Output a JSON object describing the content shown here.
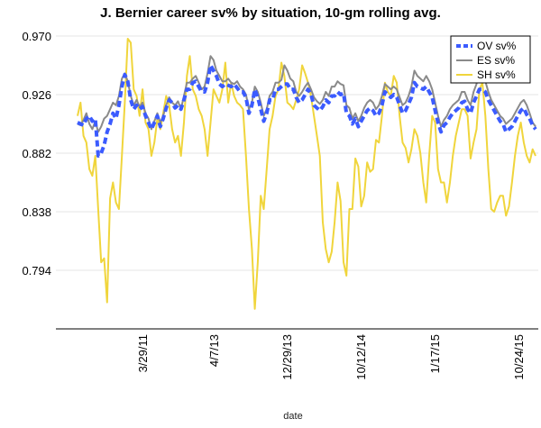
{
  "chart_data": {
    "type": "line",
    "title": "J. Bernier career sv% by situation, 10-gm rolling avg.",
    "xlabel": "date",
    "ylabel": "",
    "x_ticks": [
      "3/29/11",
      "4/7/13",
      "12/29/13",
      "10/12/14",
      "1/17/15",
      "10/24/15"
    ],
    "y_ticks": [
      "0.970",
      "0.926",
      "0.882",
      "0.838",
      "0.794"
    ],
    "ylim": [
      0.75,
      0.97
    ],
    "legend_position": "top-right",
    "series": [
      {
        "name": "OV sv%",
        "color": "#3b5bff",
        "style": "dashed",
        "values": [
          0.905,
          0.904,
          0.903,
          0.908,
          0.91,
          0.906,
          0.908,
          0.88,
          0.882,
          0.888,
          0.898,
          0.904,
          0.912,
          0.908,
          0.918,
          0.932,
          0.941,
          0.936,
          0.922,
          0.915,
          0.918,
          0.915,
          0.917,
          0.91,
          0.905,
          0.9,
          0.905,
          0.91,
          0.902,
          0.908,
          0.916,
          0.922,
          0.92,
          0.916,
          0.918,
          0.915,
          0.922,
          0.93,
          0.93,
          0.935,
          0.936,
          0.932,
          0.928,
          0.928,
          0.935,
          0.948,
          0.944,
          0.94,
          0.934,
          0.932,
          0.934,
          0.933,
          0.932,
          0.934,
          0.931,
          0.928,
          0.928,
          0.924,
          0.912,
          0.918,
          0.93,
          0.924,
          0.915,
          0.906,
          0.912,
          0.922,
          0.922,
          0.93,
          0.93,
          0.932,
          0.934,
          0.934,
          0.93,
          0.93,
          0.924,
          0.92,
          0.922,
          0.926,
          0.93,
          0.926,
          0.918,
          0.916,
          0.914,
          0.917,
          0.922,
          0.92,
          0.925,
          0.925,
          0.928,
          0.926,
          0.927,
          0.912,
          0.91,
          0.904,
          0.908,
          0.902,
          0.906,
          0.91,
          0.914,
          0.916,
          0.914,
          0.91,
          0.912,
          0.918,
          0.928,
          0.926,
          0.924,
          0.926,
          0.924,
          0.918,
          0.912,
          0.914,
          0.919,
          0.924,
          0.935,
          0.932,
          0.931,
          0.93,
          0.932,
          0.928,
          0.924,
          0.914,
          0.905,
          0.898,
          0.903,
          0.905,
          0.909,
          0.912,
          0.914,
          0.916,
          0.92,
          0.921,
          0.915,
          0.912,
          0.92,
          0.925,
          0.93,
          0.93,
          0.928,
          0.922,
          0.918,
          0.914,
          0.91,
          0.906,
          0.904,
          0.898,
          0.9,
          0.902,
          0.906,
          0.91,
          0.914,
          0.916,
          0.911,
          0.908,
          0.903,
          0.9
        ]
      },
      {
        "name": "ES sv%",
        "color": "#8a8a8a",
        "style": "solid",
        "values": [
          0.904,
          0.903,
          0.907,
          0.912,
          0.904,
          0.9,
          0.906,
          0.898,
          0.902,
          0.908,
          0.91,
          0.915,
          0.92,
          0.918,
          0.925,
          0.938,
          0.942,
          0.936,
          0.925,
          0.918,
          0.922,
          0.917,
          0.92,
          0.912,
          0.908,
          0.9,
          0.906,
          0.912,
          0.905,
          0.91,
          0.918,
          0.924,
          0.92,
          0.918,
          0.921,
          0.915,
          0.925,
          0.935,
          0.935,
          0.938,
          0.94,
          0.935,
          0.93,
          0.932,
          0.942,
          0.955,
          0.952,
          0.944,
          0.94,
          0.936,
          0.936,
          0.938,
          0.935,
          0.934,
          0.936,
          0.932,
          0.93,
          0.926,
          0.915,
          0.92,
          0.932,
          0.928,
          0.92,
          0.91,
          0.915,
          0.925,
          0.928,
          0.935,
          0.935,
          0.937,
          0.948,
          0.944,
          0.938,
          0.936,
          0.928,
          0.925,
          0.928,
          0.932,
          0.935,
          0.93,
          0.924,
          0.921,
          0.919,
          0.922,
          0.928,
          0.925,
          0.932,
          0.932,
          0.936,
          0.934,
          0.933,
          0.918,
          0.916,
          0.908,
          0.912,
          0.906,
          0.91,
          0.916,
          0.92,
          0.922,
          0.92,
          0.915,
          0.918,
          0.925,
          0.934,
          0.932,
          0.93,
          0.932,
          0.93,
          0.924,
          0.918,
          0.92,
          0.925,
          0.932,
          0.944,
          0.94,
          0.938,
          0.936,
          0.94,
          0.936,
          0.93,
          0.92,
          0.91,
          0.902,
          0.907,
          0.91,
          0.915,
          0.918,
          0.92,
          0.922,
          0.928,
          0.928,
          0.922,
          0.918,
          0.928,
          0.934,
          0.945,
          0.94,
          0.936,
          0.928,
          0.922,
          0.918,
          0.914,
          0.91,
          0.908,
          0.904,
          0.906,
          0.908,
          0.912,
          0.916,
          0.92,
          0.922,
          0.918,
          0.912,
          0.905,
          0.902
        ]
      },
      {
        "name": "SH sv%",
        "color": "#f0d53c",
        "style": "solid",
        "values": [
          0.91,
          0.92,
          0.895,
          0.89,
          0.87,
          0.865,
          0.88,
          0.84,
          0.8,
          0.803,
          0.77,
          0.848,
          0.86,
          0.845,
          0.84,
          0.88,
          0.92,
          0.968,
          0.965,
          0.93,
          0.925,
          0.91,
          0.93,
          0.905,
          0.9,
          0.88,
          0.89,
          0.908,
          0.9,
          0.912,
          0.925,
          0.918,
          0.9,
          0.89,
          0.895,
          0.88,
          0.905,
          0.94,
          0.955,
          0.93,
          0.925,
          0.915,
          0.91,
          0.9,
          0.88,
          0.905,
          0.93,
          0.925,
          0.92,
          0.93,
          0.95,
          0.92,
          0.935,
          0.925,
          0.92,
          0.918,
          0.915,
          0.88,
          0.84,
          0.81,
          0.765,
          0.8,
          0.85,
          0.84,
          0.87,
          0.9,
          0.91,
          0.925,
          0.93,
          0.95,
          0.94,
          0.92,
          0.918,
          0.915,
          0.922,
          0.93,
          0.948,
          0.942,
          0.935,
          0.925,
          0.91,
          0.895,
          0.88,
          0.83,
          0.81,
          0.8,
          0.808,
          0.83,
          0.86,
          0.846,
          0.8,
          0.79,
          0.84,
          0.84,
          0.878,
          0.872,
          0.842,
          0.85,
          0.875,
          0.868,
          0.87,
          0.892,
          0.89,
          0.91,
          0.935,
          0.928,
          0.925,
          0.94,
          0.935,
          0.91,
          0.89,
          0.886,
          0.875,
          0.885,
          0.9,
          0.895,
          0.882,
          0.86,
          0.845,
          0.88,
          0.91,
          0.905,
          0.87,
          0.86,
          0.86,
          0.845,
          0.86,
          0.88,
          0.895,
          0.905,
          0.915,
          0.915,
          0.91,
          0.878,
          0.89,
          0.9,
          0.93,
          0.935,
          0.91,
          0.87,
          0.84,
          0.838,
          0.845,
          0.85,
          0.85,
          0.835,
          0.842,
          0.86,
          0.88,
          0.895,
          0.905,
          0.89,
          0.88,
          0.875,
          0.885,
          0.88
        ]
      }
    ]
  }
}
